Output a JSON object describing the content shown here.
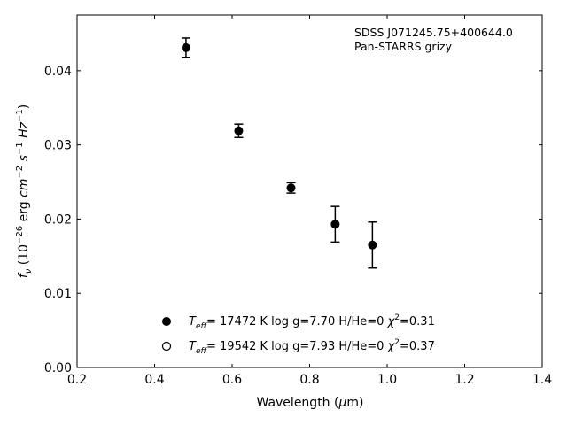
{
  "chart_data": {
    "type": "scatter",
    "xlabel_pre": "Wavelength (",
    "xlabel_mu": "μ",
    "xlabel_post": "m)",
    "ylabel_parts": {
      "f": "f",
      "nu": "ν",
      "unit_open": " (10",
      "exp1": "−26",
      "erg": " erg ",
      "cm": "cm",
      "exp2": "−2",
      "s": " s",
      "exp3": "−1",
      "hz": " Hz",
      "exp4": "−1",
      "close": ")"
    },
    "xlim": [
      0.2,
      1.4
    ],
    "ylim": [
      0.0,
      0.0475
    ],
    "xticks": [
      "0.2",
      "0.4",
      "0.6",
      "0.8",
      "1.0",
      "1.2",
      "1.4"
    ],
    "xtick_values": [
      0.2,
      0.4,
      0.6,
      0.8,
      1.0,
      1.2,
      1.4
    ],
    "yticks": [
      "0.00",
      "0.01",
      "0.02",
      "0.03",
      "0.04"
    ],
    "ytick_values": [
      0.0,
      0.01,
      0.02,
      0.03,
      0.04
    ],
    "annotation_line1": "SDSS J071245.75+400644.0",
    "annotation_line2": "Pan-STARRS grizy",
    "grid": false,
    "points": [
      {
        "x": 0.481,
        "y": 0.0431,
        "yerr": 0.0013
      },
      {
        "x": 0.617,
        "y": 0.0319,
        "yerr": 0.0009
      },
      {
        "x": 0.752,
        "y": 0.0242,
        "yerr": 0.0007
      },
      {
        "x": 0.866,
        "y": 0.0193,
        "yerr": 0.0024
      },
      {
        "x": 0.962,
        "y": 0.0165,
        "yerr": 0.0031
      }
    ],
    "legend": [
      {
        "marker": "filled",
        "teff_value": "= 17472 K  log g=7.70  H/He=0  ",
        "chi_value": "=0.31"
      },
      {
        "marker": "open",
        "teff_value": "= 19542 K  log g=7.93  H/He=0  ",
        "chi_value": "=0.37"
      }
    ],
    "legend_T": "T",
    "legend_eff": "eff",
    "legend_chi": "χ",
    "legend_chi_exp": "2"
  }
}
